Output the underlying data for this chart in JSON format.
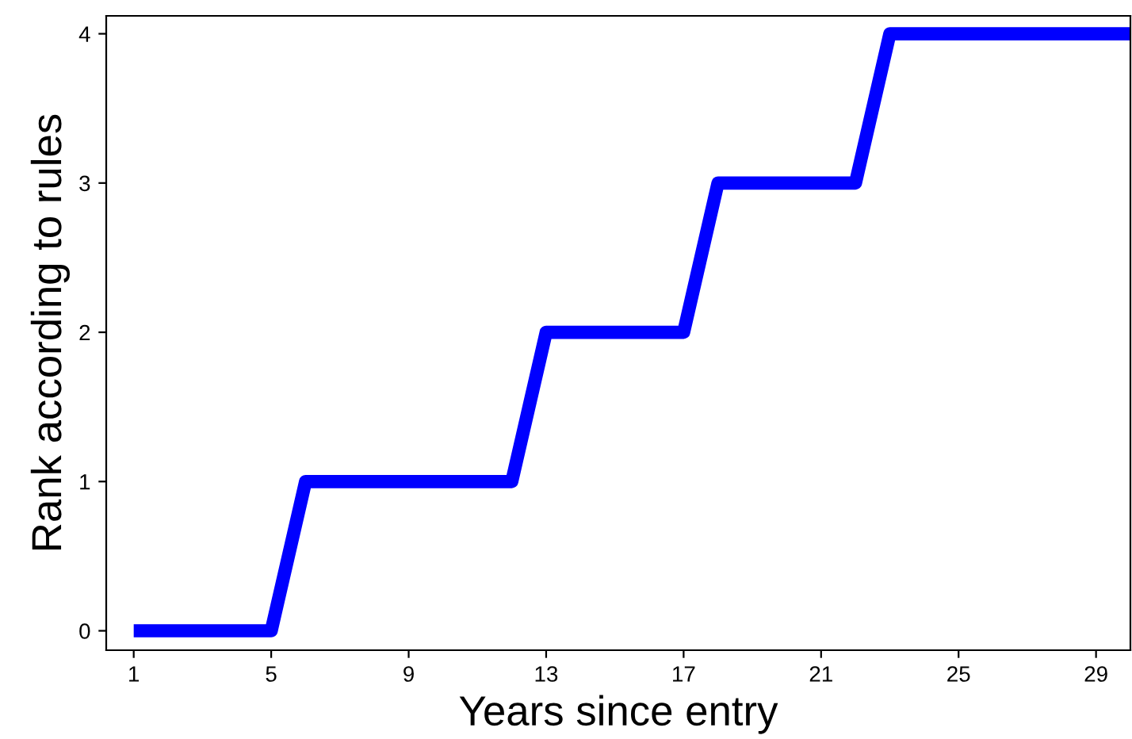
{
  "chart_data": {
    "type": "line",
    "xlabel": "Years since entry",
    "ylabel": "Rank according to rules",
    "x": [
      1,
      5,
      6,
      12,
      13,
      17,
      18,
      22,
      23,
      30
    ],
    "series": [
      {
        "color": "#0000ff",
        "values": [
          0,
          0,
          1,
          1,
          2,
          2,
          3,
          3,
          4,
          4
        ]
      }
    ],
    "xlim": [
      0.2,
      30
    ],
    "ylim": [
      -0.13,
      4.12
    ],
    "xticks": [
      1,
      5,
      9,
      13,
      17,
      21,
      25,
      29
    ],
    "yticks": [
      0,
      1,
      2,
      3,
      4
    ],
    "grid": false,
    "legend": false,
    "marker": "none",
    "line_style": "solid"
  }
}
